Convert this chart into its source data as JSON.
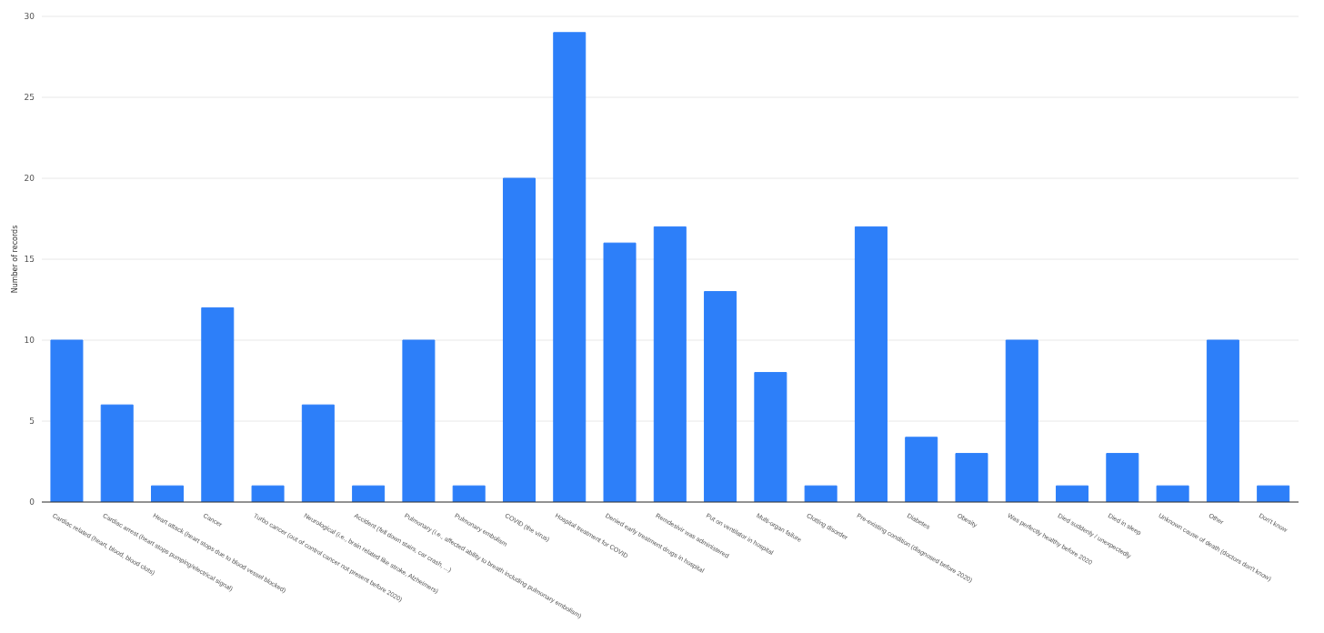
{
  "chart_data": {
    "type": "bar",
    "ylabel": "Number of records",
    "categories": [
      "Cardiac related (heart, blood, blood clots)",
      "Cardiac arrest (heart stops pumping/electrical signal)",
      "Heart attack (heart stops due to blood vessel blocked)",
      "Cancer",
      "Turbo cancer (out of control cancer not present before 2020)",
      "Neurological (i.e., brain related like stroke, Alzheimers)",
      "Accident (fell down stairs, car crash, ...)",
      "Pulmonary (i.e., affected ability to breath including pulmonary embolism)",
      "Pulmonary embolism",
      "COVID (the virus)",
      "Hospital treatment for COVID",
      "Denied early treatment drugs in hospital",
      "Remdesivir was administered",
      "Put on ventilator in hospital",
      "Multi-organ failure",
      "Clotting disorder",
      "Pre-existing condition (diagnosed before 2020)",
      "Diabetes",
      "Obesity",
      "Was perfectly healthy before 2020",
      "Died suddenly / unexpectedly",
      "Died in sleep",
      "Unknown cause of death (doctors don't know)",
      "Other",
      "Don't know"
    ],
    "values": [
      10,
      6,
      1,
      12,
      1,
      6,
      1,
      10,
      1,
      20,
      29,
      16,
      17,
      13,
      8,
      1,
      17,
      4,
      3,
      10,
      1,
      3,
      1,
      10,
      1
    ],
    "color": "#2d7ff9",
    "ylim": [
      0,
      30
    ],
    "yticks": [
      0,
      5,
      10,
      15,
      20,
      25,
      30
    ],
    "grid": "y"
  }
}
